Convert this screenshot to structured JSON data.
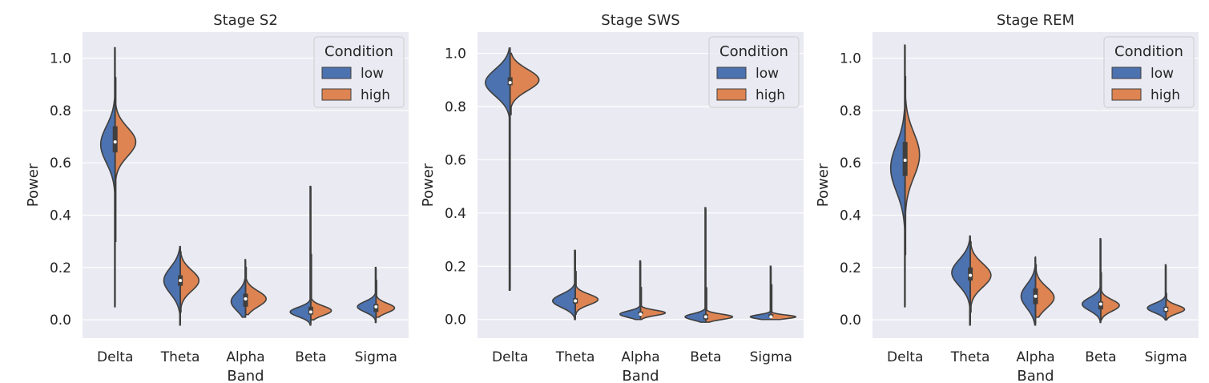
{
  "colors": {
    "low": "#4c72b0",
    "high": "#dd8452",
    "line": "#3f3f3f"
  },
  "chart_data": [
    {
      "type": "violin",
      "title": "Stage S2",
      "xlabel": "Band",
      "ylabel": "Power",
      "ylim": [
        -0.07,
        1.1
      ],
      "yticks": [
        "0.0",
        "0.2",
        "0.4",
        "0.6",
        "0.8",
        "1.0"
      ],
      "grid": true,
      "categories": [
        "Delta",
        "Theta",
        "Alpha",
        "Beta",
        "Sigma"
      ],
      "legend": {
        "title": "Condition",
        "entries": [
          "low",
          "high"
        ],
        "position": "top-right"
      },
      "series": [
        {
          "name": "low",
          "values": [
            {
              "min": 0.05,
              "max": 1.04,
              "q1": 0.64,
              "median": 0.68,
              "q3": 0.74,
              "mode": 0.67,
              "mode_width": 0.07,
              "spread": 0.07
            },
            {
              "min": -0.02,
              "max": 0.28,
              "q1": 0.13,
              "median": 0.15,
              "q3": 0.17,
              "mode": 0.15,
              "mode_width": 0.08,
              "spread": 0.05
            },
            {
              "min": 0.01,
              "max": 0.23,
              "q1": 0.05,
              "median": 0.08,
              "q3": 0.1,
              "mode": 0.07,
              "mode_width": 0.07,
              "spread": 0.035
            },
            {
              "min": -0.02,
              "max": 0.51,
              "q1": 0.02,
              "median": 0.03,
              "q3": 0.05,
              "mode": 0.03,
              "mode_width": 0.1,
              "spread": 0.018
            },
            {
              "min": -0.01,
              "max": 0.2,
              "q1": 0.03,
              "median": 0.05,
              "q3": 0.06,
              "mode": 0.05,
              "mode_width": 0.09,
              "spread": 0.02
            }
          ]
        },
        {
          "name": "high",
          "values": [
            {
              "min": 0.3,
              "max": 0.93,
              "q1": 0.64,
              "median": 0.68,
              "q3": 0.74,
              "mode": 0.68,
              "mode_width": 0.1,
              "spread": 0.055
            },
            {
              "min": 0.03,
              "max": 0.26,
              "q1": 0.13,
              "median": 0.15,
              "q3": 0.17,
              "mode": 0.15,
              "mode_width": 0.09,
              "spread": 0.04
            },
            {
              "min": 0.02,
              "max": 0.2,
              "q1": 0.05,
              "median": 0.08,
              "q3": 0.1,
              "mode": 0.08,
              "mode_width": 0.1,
              "spread": 0.03
            },
            {
              "min": 0.0,
              "max": 0.25,
              "q1": 0.02,
              "median": 0.03,
              "q3": 0.05,
              "mode": 0.035,
              "mode_width": 0.1,
              "spread": 0.018
            },
            {
              "min": 0.01,
              "max": 0.15,
              "q1": 0.03,
              "median": 0.05,
              "q3": 0.06,
              "mode": 0.045,
              "mode_width": 0.09,
              "spread": 0.018
            }
          ]
        }
      ]
    },
    {
      "type": "violin",
      "title": "Stage SWS",
      "xlabel": "Band",
      "ylabel": "Power",
      "ylim": [
        -0.07,
        1.08
      ],
      "yticks": [
        "0.0",
        "0.2",
        "0.4",
        "0.6",
        "0.8",
        "1.0"
      ],
      "grid": true,
      "categories": [
        "Delta",
        "Theta",
        "Alpha",
        "Beta",
        "Sigma"
      ],
      "legend": {
        "title": "Condition",
        "entries": [
          "low",
          "high"
        ],
        "position": "top-right"
      },
      "series": [
        {
          "name": "low",
          "values": [
            {
              "min": 0.11,
              "max": 1.02,
              "q1": 0.88,
              "median": 0.89,
              "q3": 0.91,
              "mode": 0.89,
              "mode_width": 0.12,
              "spread": 0.05
            },
            {
              "min": 0.0,
              "max": 0.26,
              "q1": 0.06,
              "median": 0.07,
              "q3": 0.08,
              "mode": 0.07,
              "mode_width": 0.11,
              "spread": 0.025
            },
            {
              "min": 0.0,
              "max": 0.22,
              "q1": 0.02,
              "median": 0.02,
              "q3": 0.03,
              "mode": 0.02,
              "mode_width": 0.1,
              "spread": 0.012
            },
            {
              "min": -0.01,
              "max": 0.42,
              "q1": 0.0,
              "median": 0.01,
              "q3": 0.02,
              "mode": 0.01,
              "mode_width": 0.1,
              "spread": 0.012
            },
            {
              "min": 0.0,
              "max": 0.2,
              "q1": 0.01,
              "median": 0.01,
              "q3": 0.02,
              "mode": 0.01,
              "mode_width": 0.1,
              "spread": 0.008
            }
          ]
        },
        {
          "name": "high",
          "values": [
            {
              "min": 0.77,
              "max": 1.0,
              "q1": 0.88,
              "median": 0.89,
              "q3": 0.91,
              "mode": 0.9,
              "mode_width": 0.14,
              "spread": 0.04
            },
            {
              "min": 0.02,
              "max": 0.18,
              "q1": 0.06,
              "median": 0.07,
              "q3": 0.08,
              "mode": 0.075,
              "mode_width": 0.11,
              "spread": 0.02
            },
            {
              "min": 0.0,
              "max": 0.12,
              "q1": 0.02,
              "median": 0.02,
              "q3": 0.03,
              "mode": 0.025,
              "mode_width": 0.12,
              "spread": 0.01
            },
            {
              "min": -0.01,
              "max": 0.12,
              "q1": 0.0,
              "median": 0.01,
              "q3": 0.02,
              "mode": 0.01,
              "mode_width": 0.13,
              "spread": 0.01
            },
            {
              "min": 0.0,
              "max": 0.13,
              "q1": 0.01,
              "median": 0.01,
              "q3": 0.02,
              "mode": 0.01,
              "mode_width": 0.12,
              "spread": 0.007
            }
          ]
        }
      ]
    },
    {
      "type": "violin",
      "title": "Stage REM",
      "xlabel": "Band",
      "ylabel": "Power",
      "ylim": [
        -0.07,
        1.1
      ],
      "yticks": [
        "0.0",
        "0.2",
        "0.4",
        "0.6",
        "0.8",
        "1.0"
      ],
      "grid": true,
      "categories": [
        "Delta",
        "Theta",
        "Alpha",
        "Beta",
        "Sigma"
      ],
      "legend": {
        "title": "Condition",
        "entries": [
          "low",
          "high"
        ],
        "position": "top-right"
      },
      "series": [
        {
          "name": "low",
          "values": [
            {
              "min": 0.05,
              "max": 1.05,
              "q1": 0.55,
              "median": 0.61,
              "q3": 0.68,
              "mode": 0.58,
              "mode_width": 0.07,
              "spread": 0.09
            },
            {
              "min": -0.02,
              "max": 0.32,
              "q1": 0.15,
              "median": 0.17,
              "q3": 0.2,
              "mode": 0.18,
              "mode_width": 0.09,
              "spread": 0.05
            },
            {
              "min": -0.02,
              "max": 0.24,
              "q1": 0.06,
              "median": 0.09,
              "q3": 0.12,
              "mode": 0.09,
              "mode_width": 0.07,
              "spread": 0.045
            },
            {
              "min": -0.01,
              "max": 0.31,
              "q1": 0.04,
              "median": 0.06,
              "q3": 0.07,
              "mode": 0.06,
              "mode_width": 0.09,
              "spread": 0.025
            },
            {
              "min": 0.0,
              "max": 0.21,
              "q1": 0.03,
              "median": 0.04,
              "q3": 0.05,
              "mode": 0.045,
              "mode_width": 0.09,
              "spread": 0.018
            }
          ]
        },
        {
          "name": "high",
          "values": [
            {
              "min": 0.25,
              "max": 0.93,
              "q1": 0.55,
              "median": 0.61,
              "q3": 0.68,
              "mode": 0.63,
              "mode_width": 0.07,
              "spread": 0.085
            },
            {
              "min": 0.03,
              "max": 0.3,
              "q1": 0.15,
              "median": 0.17,
              "q3": 0.2,
              "mode": 0.17,
              "mode_width": 0.1,
              "spread": 0.045
            },
            {
              "min": 0.01,
              "max": 0.21,
              "q1": 0.06,
              "median": 0.09,
              "q3": 0.12,
              "mode": 0.085,
              "mode_width": 0.09,
              "spread": 0.04
            },
            {
              "min": 0.0,
              "max": 0.18,
              "q1": 0.04,
              "median": 0.06,
              "q3": 0.07,
              "mode": 0.055,
              "mode_width": 0.09,
              "spread": 0.022
            },
            {
              "min": 0.0,
              "max": 0.1,
              "q1": 0.03,
              "median": 0.04,
              "q3": 0.05,
              "mode": 0.04,
              "mode_width": 0.09,
              "spread": 0.016
            }
          ]
        }
      ]
    }
  ]
}
